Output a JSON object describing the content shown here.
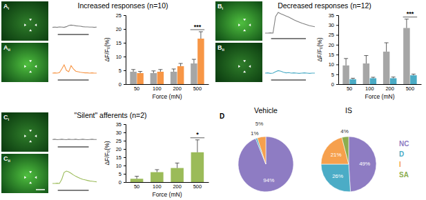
{
  "figure": {
    "image_labels": [
      {
        "letter": "A",
        "sub": "i"
      },
      {
        "letter": "A",
        "sub": "ii"
      },
      {
        "letter": "B",
        "sub": "i"
      },
      {
        "letter": "B",
        "sub": "ii"
      },
      {
        "letter": "C",
        "sub": "i"
      },
      {
        "letter": "C",
        "sub": "ii"
      }
    ],
    "panel_label": "D"
  },
  "chart_data": [
    {
      "type": "bar",
      "title": "Increased responses (n=10)",
      "categories": [
        "50",
        "100",
        "200",
        "500"
      ],
      "x_label": "Force (mN)",
      "y_label": "ΔF/F₀(%)",
      "ylim": [
        0,
        25
      ],
      "yticks": [
        0,
        5,
        10,
        15,
        20,
        25
      ],
      "series": [
        {
          "color": "#a6a6a6",
          "values": [
            4.5,
            4,
            4.5,
            7.5
          ],
          "errors": [
            0.8,
            0.8,
            1,
            1.5
          ]
        },
        {
          "color": "#f79646",
          "values": [
            4,
            4.5,
            6.5,
            16.5
          ],
          "errors": [
            0.6,
            0.8,
            1,
            2.5
          ]
        }
      ],
      "annotations": [
        {
          "category": "500",
          "text": "***"
        }
      ]
    },
    {
      "type": "bar",
      "title": "Decreased responses (n=12)",
      "categories": [
        "50",
        "100",
        "200",
        "500"
      ],
      "x_label": "Force (mN)",
      "y_label": "ΔF/F₀(%)",
      "ylim": [
        0,
        35
      ],
      "yticks": [
        0,
        5,
        10,
        15,
        20,
        25,
        30,
        35
      ],
      "series": [
        {
          "color": "#a6a6a6",
          "values": [
            9.5,
            10.5,
            16.5,
            28.5
          ],
          "errors": [
            3.5,
            4,
            4.5,
            4.5
          ]
        },
        {
          "color": "#4bacc6",
          "values": [
            2.5,
            3,
            3,
            4.5
          ],
          "errors": [
            0.5,
            0.5,
            0.6,
            0.6
          ]
        }
      ],
      "annotations": [
        {
          "category": "500",
          "text": "***"
        }
      ]
    },
    {
      "type": "bar",
      "title": "\"Silent\" afferents (n=2)",
      "categories": [
        "50",
        "100",
        "200",
        "500"
      ],
      "x_label": "Force (mN)",
      "y_label": "ΔF/F₀(%)",
      "ylim": [
        0,
        35
      ],
      "yticks": [
        0,
        5,
        10,
        15,
        20,
        25,
        30,
        35
      ],
      "series": [
        {
          "color": "#9bbb59",
          "values": [
            2,
            6,
            8.5,
            18
          ],
          "errors": [
            1.5,
            1.5,
            3,
            7.5
          ]
        }
      ],
      "annotations": [
        {
          "category": "500",
          "text": "*"
        }
      ]
    },
    {
      "type": "pie",
      "title": "Vehicle",
      "categories": [
        "NC",
        "D",
        "I"
      ],
      "values": [
        94,
        1,
        5
      ],
      "value_labels": [
        "94%",
        "1%",
        "5%"
      ],
      "colors": [
        "#8e7cc3",
        "#4bacc6",
        "#f6a04d"
      ],
      "data_labels": true
    },
    {
      "type": "pie",
      "title": "IS",
      "categories": [
        "NC",
        "D",
        "I",
        "SA"
      ],
      "values": [
        49,
        26,
        21,
        4
      ],
      "value_labels": [
        "49%",
        "26%",
        "21%",
        "4%"
      ],
      "colors": [
        "#8e7cc3",
        "#4bacc6",
        "#f6a04d",
        "#8cad4e"
      ],
      "data_labels": true,
      "legend": "right"
    },
    {
      "type": "line",
      "tick_labels": false,
      "x": [
        0,
        1,
        2,
        3,
        4,
        5,
        6,
        7,
        8,
        9,
        10,
        11,
        12,
        13,
        14,
        15,
        16,
        17,
        18,
        19
      ],
      "xlim": [
        0,
        19
      ],
      "ylim": [
        0,
        100
      ],
      "series": [
        {
          "color": "#808080",
          "values": [
            20,
            21,
            20,
            22,
            21,
            20,
            23,
            28,
            30,
            29,
            27,
            26,
            25,
            23,
            22,
            22,
            21,
            21,
            20,
            21
          ]
        }
      ]
    },
    {
      "type": "line",
      "tick_labels": false,
      "x": [
        0,
        1,
        2,
        3,
        4,
        5,
        6,
        7,
        8,
        9,
        10,
        11,
        12,
        13,
        14,
        15,
        16,
        17,
        18,
        19
      ],
      "xlim": [
        0,
        19
      ],
      "ylim": [
        0,
        100
      ],
      "series": [
        {
          "color": "#f79646",
          "values": [
            15,
            16,
            15,
            17,
            30,
            45,
            25,
            20,
            42,
            30,
            22,
            20,
            18,
            17,
            16,
            16,
            15,
            16,
            15,
            15
          ]
        }
      ]
    },
    {
      "type": "line",
      "tick_labels": false,
      "x": [
        0,
        1,
        2,
        3,
        4,
        5,
        6,
        7,
        8,
        9,
        10,
        11,
        12,
        13,
        14,
        15,
        16,
        17,
        18,
        19
      ],
      "xlim": [
        0,
        19
      ],
      "ylim": [
        0,
        100
      ],
      "series": [
        {
          "color": "#808080",
          "values": [
            10,
            10,
            11,
            10,
            70,
            85,
            80,
            76,
            72,
            68,
            63,
            58,
            54,
            50,
            46,
            43,
            40,
            37,
            35,
            33
          ]
        }
      ]
    },
    {
      "type": "line",
      "tick_labels": false,
      "x": [
        0,
        1,
        2,
        3,
        4,
        5,
        6,
        7,
        8,
        9,
        10,
        11,
        12,
        13,
        14,
        15,
        16,
        17,
        18,
        19
      ],
      "xlim": [
        0,
        19
      ],
      "ylim": [
        0,
        100
      ],
      "series": [
        {
          "color": "#4bacc6",
          "values": [
            15,
            16,
            14,
            15,
            20,
            24,
            22,
            18,
            16,
            17,
            15,
            16,
            15,
            14,
            15,
            16,
            15,
            14,
            15,
            15
          ]
        }
      ]
    },
    {
      "type": "line",
      "tick_labels": false,
      "x": [
        0,
        1,
        2,
        3,
        4,
        5,
        6,
        7,
        8,
        9,
        10,
        11,
        12,
        13,
        14,
        15,
        16,
        17,
        18,
        19
      ],
      "xlim": [
        0,
        19
      ],
      "ylim": [
        0,
        100
      ],
      "series": [
        {
          "color": "#808080",
          "values": [
            20,
            21,
            19,
            20,
            21,
            20,
            19,
            21,
            20,
            20,
            21,
            19,
            20,
            21,
            20,
            19,
            20,
            21,
            20,
            20
          ]
        }
      ]
    },
    {
      "type": "line",
      "tick_labels": false,
      "x": [
        0,
        1,
        2,
        3,
        4,
        5,
        6,
        7,
        8,
        9,
        10,
        11,
        12,
        13,
        14,
        15,
        16,
        17,
        18,
        19
      ],
      "xlim": [
        0,
        19
      ],
      "ylim": [
        0,
        100
      ],
      "series": [
        {
          "color": "#9bbb59",
          "values": [
            15,
            15,
            16,
            15,
            30,
            55,
            60,
            57,
            52,
            46,
            41,
            37,
            33,
            30,
            28,
            26,
            24,
            23,
            22,
            21
          ]
        }
      ]
    }
  ]
}
